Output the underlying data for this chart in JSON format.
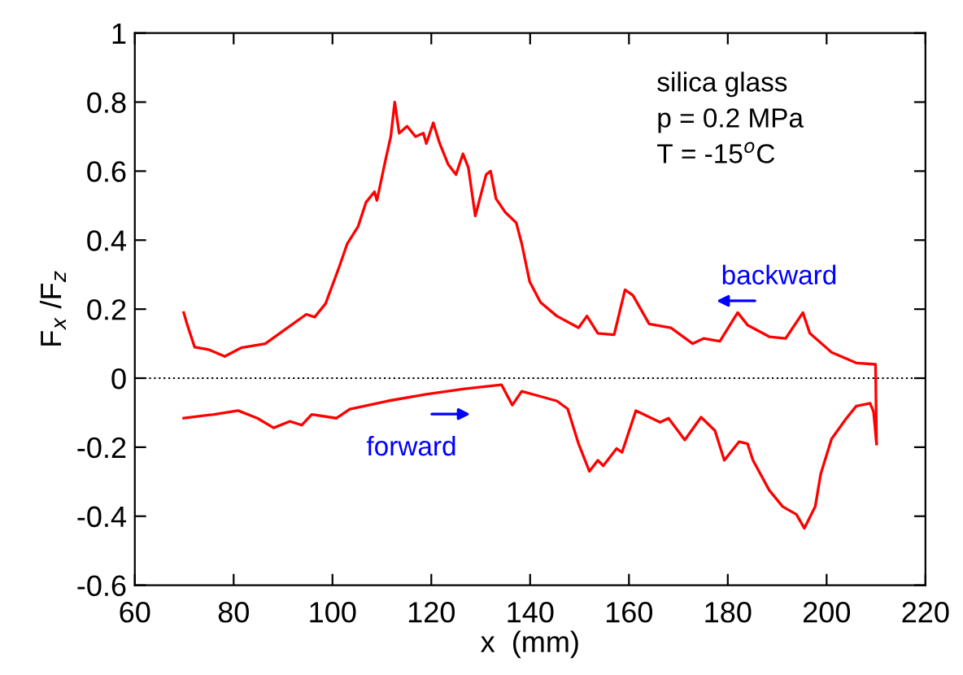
{
  "chart_data": {
    "type": "line",
    "xlabel": "x  (mm)",
    "ylabel": "F$_{x}$ /F$_{z}$",
    "xlim": [
      60,
      220
    ],
    "xticks": [
      60,
      80,
      100,
      120,
      140,
      160,
      180,
      200,
      220
    ],
    "ylim": [
      -0.6,
      1
    ],
    "yticks": [
      -0.6,
      -0.4,
      -0.2,
      0,
      0.2,
      0.4,
      0.6,
      0.8,
      1
    ],
    "grid": false,
    "legend": false,
    "marker": "none",
    "line_style": "solid",
    "ref_lines": [
      {
        "axis": "y",
        "value": 0,
        "color": "#000000",
        "line_style": "dotted"
      }
    ],
    "annotations": [
      "silica glass",
      "p = 0.2 MPa",
      "T = -15$^{o}$C",
      "backward",
      "forward"
    ],
    "series": [
      {
        "color": "#ff0000",
        "x": [
          69.9,
          70.5,
          72.1,
          74.9,
          78.2,
          81.5,
          86.4,
          90.3,
          94.7,
          96.4,
          98.6,
          101.3,
          103,
          105.2,
          106.8,
          108.5,
          109,
          110.7,
          111.8,
          112.6,
          113.5,
          115.1,
          116.8,
          118.4,
          119,
          120.4,
          121.7,
          123.4,
          125,
          126.4,
          127.5,
          128.9,
          130,
          131.1,
          132,
          133.1,
          135,
          137.2,
          138.3,
          139.9,
          142.1,
          145.4,
          149.8,
          151.5,
          153.7,
          157,
          159.2,
          160.8,
          164.1,
          168.5,
          172.9,
          175.1,
          178.4,
          182,
          184,
          188.4,
          191.7,
          195.2,
          196.6,
          201,
          206,
          209.9,
          210.1
        ],
        "values": [
          0.19,
          0.16,
          0.09,
          0.083,
          0.063,
          0.088,
          0.1,
          0.14,
          0.185,
          0.177,
          0.216,
          0.32,
          0.39,
          0.44,
          0.51,
          0.54,
          0.515,
          0.63,
          0.7,
          0.8,
          0.71,
          0.73,
          0.7,
          0.71,
          0.68,
          0.74,
          0.68,
          0.62,
          0.59,
          0.65,
          0.61,
          0.47,
          0.53,
          0.59,
          0.6,
          0.52,
          0.48,
          0.45,
          0.39,
          0.28,
          0.22,
          0.18,
          0.146,
          0.18,
          0.13,
          0.126,
          0.256,
          0.24,
          0.157,
          0.146,
          0.1,
          0.115,
          0.107,
          0.19,
          0.154,
          0.12,
          0.115,
          0.19,
          0.13,
          0.075,
          0.044,
          0.04,
          -0.19
        ]
      },
      {
        "color": "#ff0000",
        "x": [
          69.9,
          76,
          80.9,
          84.8,
          88.1,
          91.4,
          93.8,
          95.8,
          100.8,
          103.5,
          111.2,
          118.9,
          126.7,
          134.2,
          136.4,
          138.3,
          142.1,
          145.4,
          147.6,
          149.8,
          152,
          153.7,
          154.8,
          157.5,
          158.6,
          161.4,
          166.3,
          168,
          171.3,
          174.6,
          177.4,
          179.3,
          182.3,
          184,
          185.1,
          188.4,
          191.1,
          193.9,
          195.5,
          197.7,
          198.8,
          201,
          203.8,
          206,
          208.8,
          209.5,
          210.1
        ],
        "values": [
          -0.116,
          -0.105,
          -0.094,
          -0.116,
          -0.144,
          -0.125,
          -0.136,
          -0.105,
          -0.116,
          -0.09,
          -0.066,
          -0.047,
          -0.031,
          -0.019,
          -0.078,
          -0.038,
          -0.053,
          -0.066,
          -0.089,
          -0.19,
          -0.27,
          -0.238,
          -0.254,
          -0.204,
          -0.215,
          -0.094,
          -0.128,
          -0.116,
          -0.179,
          -0.113,
          -0.152,
          -0.238,
          -0.184,
          -0.19,
          -0.238,
          -0.325,
          -0.372,
          -0.395,
          -0.435,
          -0.372,
          -0.278,
          -0.176,
          -0.12,
          -0.081,
          -0.073,
          -0.097,
          -0.19
        ]
      }
    ]
  }
}
